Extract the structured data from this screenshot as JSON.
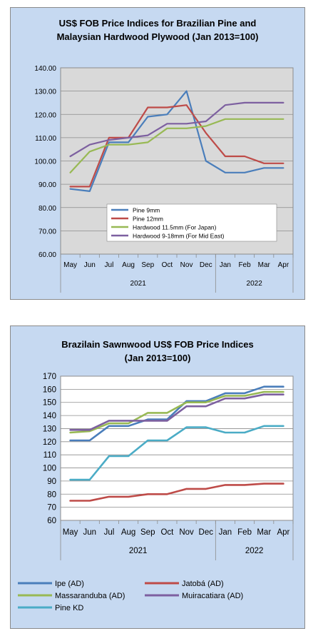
{
  "chart_data": [
    {
      "type": "line",
      "title": "US$ FOB Price Indices for Brazilian Pine and Malaysian Hardwood Plywood (Jan 2013=100)",
      "title_lines": [
        "US$ FOB Price Indices for Brazilian Pine and",
        "Malaysian Hardwood Plywood (Jan 2013=100)"
      ],
      "categories": [
        "May",
        "Jun",
        "Jul",
        "Aug",
        "Sep",
        "Oct",
        "Nov",
        "Dec",
        "Jan",
        "Feb",
        "Mar",
        "Apr"
      ],
      "year_groups": [
        {
          "label": "2021",
          "start": 0,
          "end": 7
        },
        {
          "label": "2022",
          "start": 8,
          "end": 11
        }
      ],
      "ylim": [
        60,
        140
      ],
      "ystep": 10,
      "ytick_labels": [
        "60.00",
        "70.00",
        "80.00",
        "90.00",
        "100.00",
        "110.00",
        "120.00",
        "130.00",
        "140.00"
      ],
      "grid": true,
      "legend_position": "inside-bottom-right",
      "series": [
        {
          "name": "Pine 9mm",
          "color": "#4a7ebb",
          "values": [
            88,
            87,
            108,
            108,
            119,
            120,
            130,
            100,
            95,
            95,
            97,
            97
          ]
        },
        {
          "name": "Pine 12mm",
          "color": "#be4b48",
          "values": [
            89,
            89,
            110,
            110,
            123,
            123,
            124,
            112,
            102,
            102,
            99,
            99
          ]
        },
        {
          "name": "Hardwood 11.5mm (For Japan)",
          "color": "#98b954",
          "values": [
            95,
            104,
            107,
            107,
            108,
            114,
            114,
            115,
            118,
            118,
            118,
            118
          ]
        },
        {
          "name": "Hardwood 9-18mm (For Mid East)",
          "color": "#7d60a0",
          "values": [
            102,
            107,
            109,
            110,
            111,
            116,
            116,
            117,
            124,
            125,
            125,
            125
          ]
        }
      ]
    },
    {
      "type": "line",
      "title": "Brazilain Sawnwood US$ FOB Price Indices (Jan 2013=100)",
      "title_lines": [
        "Brazilain Sawnwood US$ FOB Price Indices",
        "(Jan 2013=100)"
      ],
      "categories": [
        "May",
        "Jun",
        "Jul",
        "Aug",
        "Sep",
        "Oct",
        "Nov",
        "Dec",
        "Jan",
        "Feb",
        "Mar",
        "Apr"
      ],
      "year_groups": [
        {
          "label": "2021",
          "start": 0,
          "end": 7
        },
        {
          "label": "2022",
          "start": 8,
          "end": 11
        }
      ],
      "ylim": [
        60,
        170
      ],
      "ystep": 10,
      "ytick_labels": [
        "60",
        "70",
        "80",
        "90",
        "100",
        "110",
        "120",
        "130",
        "140",
        "150",
        "160",
        "170"
      ],
      "grid": true,
      "legend_position": "bottom",
      "series": [
        {
          "name": "Ipe (AD)",
          "color": "#4a7ebb",
          "values": [
            121,
            121,
            132,
            132,
            137,
            137,
            151,
            151,
            157,
            157,
            162,
            162
          ]
        },
        {
          "name": "Jatobá (AD)",
          "color": "#be4b48",
          "values": [
            75,
            75,
            78,
            78,
            80,
            80,
            84,
            84,
            87,
            87,
            88,
            88
          ]
        },
        {
          "name": "Massaranduba (AD)",
          "color": "#98b954",
          "values": [
            127,
            128,
            134,
            134,
            142,
            142,
            150,
            150,
            155,
            155,
            158,
            158
          ]
        },
        {
          "name": "Muiracatiara (AD)",
          "color": "#7d60a0",
          "values": [
            129,
            129,
            136,
            136,
            136,
            136,
            147,
            147,
            153,
            153,
            156,
            156
          ]
        },
        {
          "name": "Pine KD",
          "color": "#4bacc6",
          "values": [
            91,
            91,
            109,
            109,
            121,
            121,
            131,
            131,
            127,
            127,
            132,
            132
          ]
        }
      ]
    }
  ]
}
